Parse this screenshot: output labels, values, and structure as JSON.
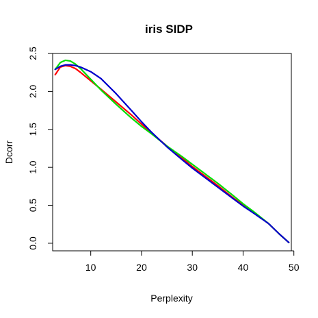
{
  "chart_data": {
    "type": "line",
    "title": "iris SIDP",
    "xlabel": "Perplexity",
    "ylabel": "Dcorr",
    "xlim": [
      2.5,
      49.5
    ],
    "ylim": [
      -0.1,
      2.5
    ],
    "xticks": [
      10,
      20,
      30,
      40,
      50
    ],
    "yticks": [
      0.0,
      0.5,
      1.0,
      1.5,
      2.0,
      2.5
    ],
    "xtick_labels": [
      "10",
      "20",
      "30",
      "40",
      "50"
    ],
    "ytick_labels": [
      "0.0",
      "0.5",
      "1.0",
      "1.5",
      "2.0",
      "2.5"
    ],
    "grid": false,
    "legend": "none",
    "series": [
      {
        "color": "#FF0000",
        "x": [
          3,
          4,
          5,
          6,
          7,
          8,
          10,
          12,
          15,
          18,
          20,
          22,
          25,
          28,
          30,
          33,
          35,
          38,
          40,
          42,
          45,
          47,
          49
        ],
        "y": [
          2.22,
          2.32,
          2.34,
          2.33,
          2.3,
          2.25,
          2.14,
          2.03,
          1.86,
          1.69,
          1.57,
          1.45,
          1.28,
          1.12,
          1.01,
          0.86,
          0.76,
          0.6,
          0.5,
          0.41,
          0.26,
          0.13,
          0.01
        ]
      },
      {
        "color": "#00DD00",
        "x": [
          3,
          4,
          5,
          6,
          7,
          8,
          10,
          12,
          15,
          18,
          20,
          22,
          25,
          28,
          30,
          33,
          35,
          38,
          40,
          42,
          45,
          47,
          49
        ],
        "y": [
          2.29,
          2.38,
          2.41,
          2.4,
          2.36,
          2.3,
          2.16,
          2.02,
          1.83,
          1.65,
          1.54,
          1.44,
          1.28,
          1.14,
          1.04,
          0.89,
          0.79,
          0.63,
          0.52,
          0.42,
          0.26,
          0.13,
          0.01
        ]
      },
      {
        "color": "#0000CC",
        "x": [
          3,
          4,
          5,
          6,
          7,
          8,
          10,
          12,
          15,
          18,
          20,
          22,
          25,
          28,
          30,
          33,
          35,
          38,
          40,
          42,
          45,
          47,
          49
        ],
        "y": [
          2.29,
          2.33,
          2.35,
          2.35,
          2.34,
          2.32,
          2.26,
          2.17,
          1.97,
          1.75,
          1.6,
          1.46,
          1.27,
          1.1,
          0.99,
          0.84,
          0.74,
          0.59,
          0.49,
          0.4,
          0.26,
          0.13,
          0.01
        ]
      }
    ]
  }
}
